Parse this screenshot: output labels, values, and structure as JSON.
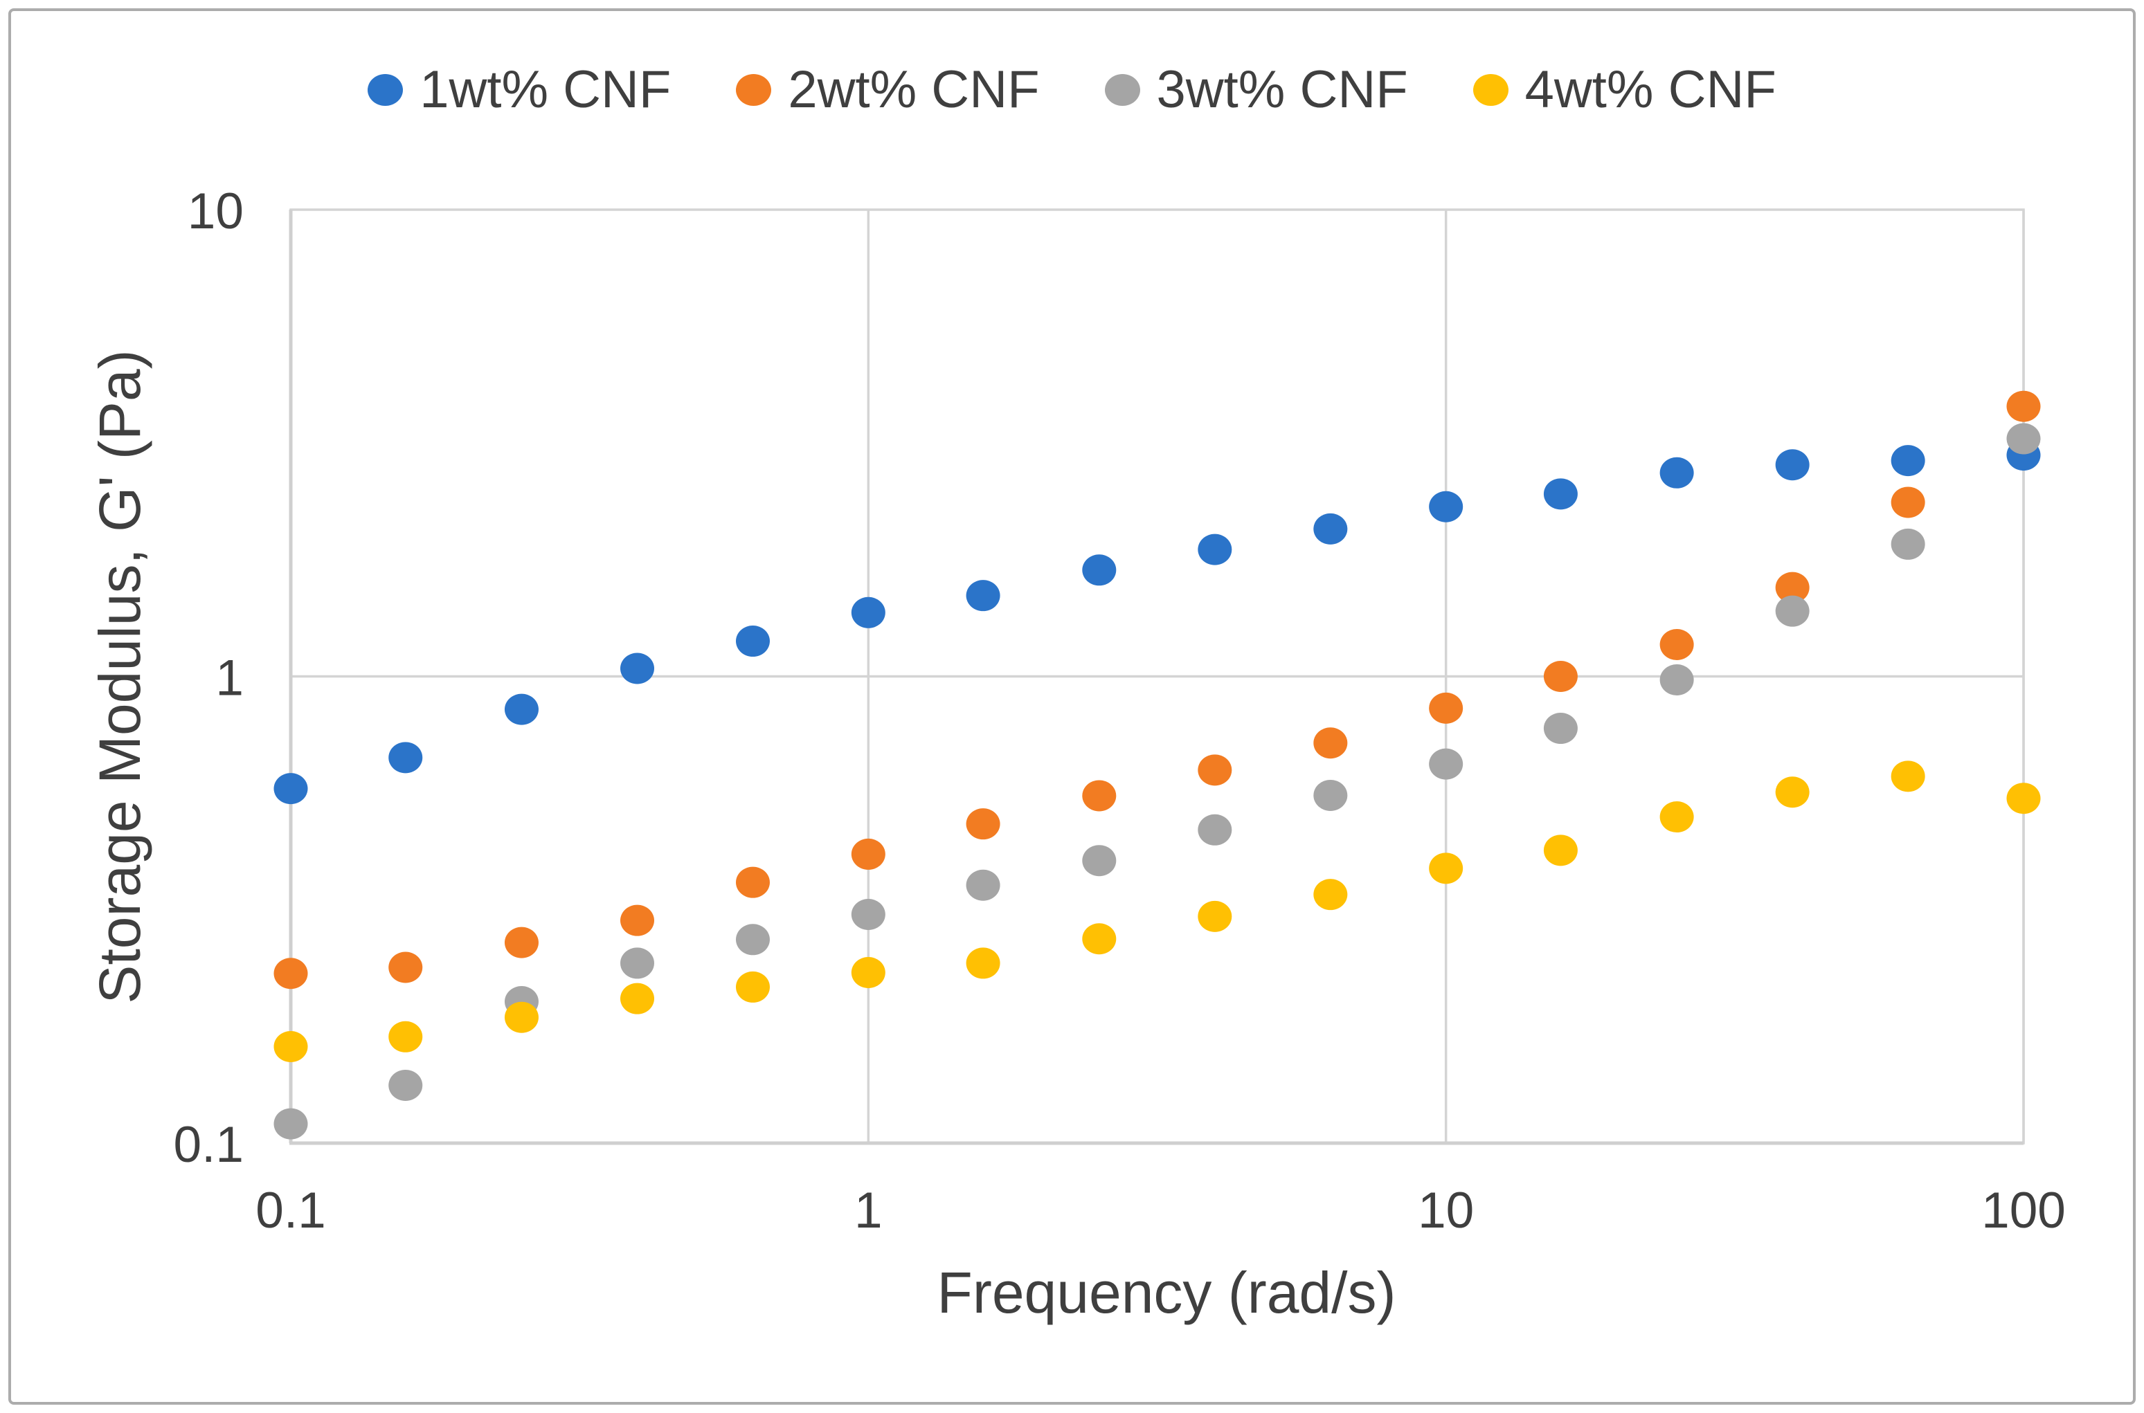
{
  "figure": {
    "background": "#FFFFFF",
    "border_color": "#ACACAC",
    "text_color": "#3F3F3F",
    "gridline_color": "#D4D4D4",
    "axisline_color": "#CFCFCF"
  },
  "chart_data": {
    "type": "scatter",
    "title": "",
    "xlabel": "Frequency (rad/s)",
    "ylabel": "Storage Modulus, G' (Pa)",
    "x_scale": "log",
    "y_scale": "log",
    "xlim": [
      0.1,
      100
    ],
    "ylim": [
      0.1,
      10
    ],
    "x_ticks": {
      "values": [
        0.1,
        1,
        10,
        100
      ],
      "labels": [
        "0.1",
        "1",
        "10",
        "100"
      ]
    },
    "y_ticks": {
      "values": [
        10,
        1,
        0.1
      ],
      "labels": [
        "10",
        "1",
        "0.1"
      ]
    },
    "grid": {
      "x_gridlines": [
        1,
        10,
        100
      ],
      "y_gridlines": [
        1
      ]
    },
    "legend_position": "top",
    "x": [
      0.1,
      0.158,
      0.251,
      0.398,
      0.631,
      1,
      1.58,
      2.51,
      3.98,
      6.31,
      10,
      15.8,
      25.1,
      39.8,
      63.1,
      100
    ],
    "series": [
      {
        "name": "1wt% CNF",
        "color": "#2B74C9",
        "values": [
          0.575,
          0.67,
          0.85,
          1.04,
          1.19,
          1.37,
          1.49,
          1.69,
          1.87,
          2.07,
          2.31,
          2.46,
          2.73,
          2.84,
          2.9,
          2.98
        ]
      },
      {
        "name": "2wt% CNF",
        "color": "#F27C22",
        "values": [
          0.231,
          0.238,
          0.269,
          0.3,
          0.362,
          0.416,
          0.483,
          0.555,
          0.63,
          0.72,
          0.855,
          1.0,
          1.17,
          1.55,
          2.36,
          3.79
        ]
      },
      {
        "name": "3wt% CNF",
        "color": "#A5A5A5",
        "values": [
          0.11,
          0.133,
          0.201,
          0.243,
          0.273,
          0.309,
          0.357,
          0.403,
          0.469,
          0.556,
          0.649,
          0.774,
          0.983,
          1.38,
          1.92,
          3.23
        ]
      },
      {
        "name": "4wt% CNF",
        "color": "#FFC003",
        "values": [
          0.161,
          0.169,
          0.186,
          0.204,
          0.216,
          0.232,
          0.243,
          0.274,
          0.306,
          0.341,
          0.388,
          0.424,
          0.5,
          0.565,
          0.611,
          0.548
        ]
      }
    ]
  }
}
